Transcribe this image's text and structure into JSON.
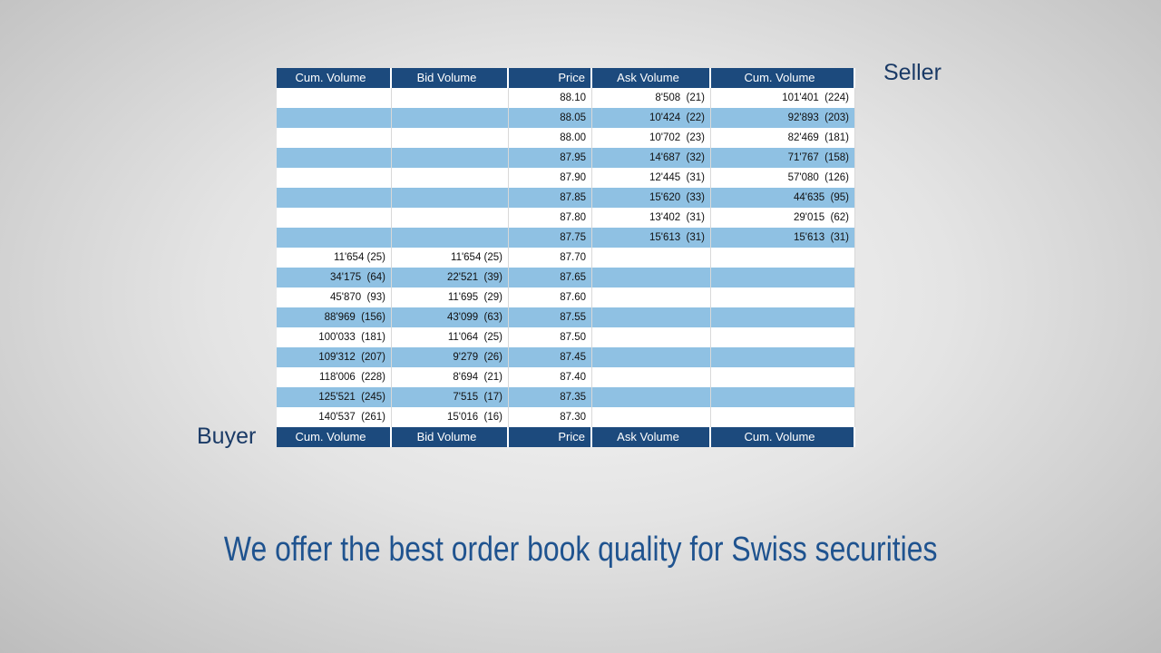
{
  "side_labels": {
    "seller": "Seller",
    "buyer": "Buyer"
  },
  "table": {
    "header": [
      "Cum. Volume",
      "Bid Volume",
      "Price",
      "Ask Volume",
      "Cum. Volume"
    ],
    "rows": [
      [
        null,
        null,
        "88.10",
        "8'508  (21)",
        "101'401  (224)"
      ],
      [
        null,
        null,
        "88.05",
        "10'424  (22)",
        "92'893  (203)"
      ],
      [
        null,
        null,
        "88.00",
        "10'702  (23)",
        "82'469  (181)"
      ],
      [
        null,
        null,
        "87.95",
        "14'687  (32)",
        "71'767  (158)"
      ],
      [
        null,
        null,
        "87.90",
        "12'445  (31)",
        "57'080  (126)"
      ],
      [
        null,
        null,
        "87.85",
        "15'620  (33)",
        "44'635  (95)"
      ],
      [
        null,
        null,
        "87.80",
        "13'402  (31)",
        "29'015  (62)"
      ],
      [
        null,
        null,
        "87.75",
        "15'613  (31)",
        "15'613  (31)"
      ],
      [
        "11'654 (25)",
        "11'654 (25)",
        "87.70",
        null,
        null
      ],
      [
        "34'175  (64)",
        "22'521  (39)",
        "87.65",
        null,
        null
      ],
      [
        "45'870  (93)",
        "11'695  (29)",
        "87.60",
        null,
        null
      ],
      [
        "88'969  (156)",
        "43'099  (63)",
        "87.55",
        null,
        null
      ],
      [
        "100'033  (181)",
        "11'064  (25)",
        "87.50",
        null,
        null
      ],
      [
        "109'312  (207)",
        "9'279  (26)",
        "87.45",
        null,
        null
      ],
      [
        "118'006  (228)",
        "8'694  (21)",
        "87.40",
        null,
        null
      ],
      [
        "125'521  (245)",
        "7'515  (17)",
        "87.35",
        null,
        null
      ],
      [
        "140'537  (261)",
        "15'016  (16)",
        "87.30",
        null,
        null
      ]
    ],
    "footer": [
      "Cum. Volume",
      "Bid Volume",
      "Price",
      "Ask Volume",
      "Cum. Volume"
    ]
  },
  "caption": "We offer the best order book quality for Swiss securities"
}
